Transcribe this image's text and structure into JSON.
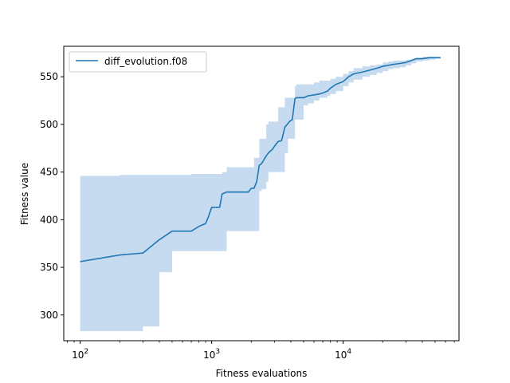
{
  "chart_data": {
    "type": "line",
    "title": "",
    "xlabel": "Fitness evaluations",
    "ylabel": "Fitness value",
    "x_scale": "log",
    "xlim": [
      75,
      76000
    ],
    "ylim": [
      273,
      582
    ],
    "grid": false,
    "legend": {
      "placement": "top-left"
    },
    "x_ticks": [
      {
        "value": 100,
        "base": "10",
        "exp": "2"
      },
      {
        "value": 1000,
        "base": "10",
        "exp": "3"
      },
      {
        "value": 10000,
        "base": "10",
        "exp": "4"
      }
    ],
    "y_ticks": [
      {
        "value": 300,
        "label": "300"
      },
      {
        "value": 350,
        "label": "350"
      },
      {
        "value": 400,
        "label": "400"
      },
      {
        "value": 450,
        "label": "450"
      },
      {
        "value": 500,
        "label": "500"
      },
      {
        "value": 550,
        "label": "550"
      }
    ],
    "series": [
      {
        "name": "diff_evolution.f08",
        "color": "#1f77b4",
        "band_color": "#c6dbef",
        "x": [
          100,
          200,
          300,
          400,
          500,
          700,
          800,
          900,
          950,
          1000,
          1150,
          1200,
          1300,
          1500,
          1900,
          2000,
          2100,
          2200,
          2300,
          2400,
          2600,
          2700,
          2900,
          3000,
          3200,
          3400,
          3600,
          3800,
          3900,
          4100,
          4300,
          4400,
          5000,
          5400,
          6000,
          6600,
          7000,
          7600,
          8000,
          8800,
          10000,
          11000,
          12000,
          14000,
          16000,
          18000,
          20000,
          22000,
          24000,
          27000,
          30000,
          33000,
          36000,
          40000,
          45000,
          50000,
          55000
        ],
        "mean": [
          356,
          363,
          365,
          379,
          388,
          388,
          393,
          396,
          404,
          413,
          413,
          427,
          429,
          429,
          429,
          433,
          433,
          440,
          457,
          459,
          467,
          470,
          474,
          477,
          482,
          483,
          497,
          501,
          503,
          505,
          527,
          528,
          528,
          530,
          531,
          532,
          533,
          535,
          538,
          542,
          545,
          550,
          553,
          555,
          557,
          559,
          561,
          562,
          563,
          564,
          565,
          567,
          569,
          569,
          570,
          570,
          570
        ],
        "lower": [
          283,
          283,
          288,
          345,
          367,
          367,
          367,
          367,
          367,
          367,
          367,
          367,
          388,
          388,
          388,
          388,
          388,
          388,
          430,
          432,
          440,
          450,
          450,
          450,
          450,
          450,
          470,
          485,
          485,
          485,
          505,
          505,
          520,
          522,
          525,
          528,
          528,
          530,
          532,
          535,
          540,
          544,
          547,
          550,
          552,
          554,
          556,
          558,
          559,
          560,
          562,
          564,
          566,
          567,
          568,
          569,
          569
        ],
        "upper": [
          446,
          447,
          447,
          447,
          447,
          448,
          448,
          448,
          448,
          448,
          448,
          450,
          455,
          455,
          455,
          455,
          465,
          465,
          485,
          485,
          500,
          503,
          503,
          503,
          518,
          518,
          528,
          528,
          528,
          528,
          540,
          542,
          542,
          542,
          544,
          546,
          546,
          546,
          548,
          550,
          553,
          556,
          559,
          561,
          562,
          563,
          565,
          566,
          567,
          567,
          568,
          569,
          570,
          571,
          571,
          571,
          571
        ]
      }
    ]
  }
}
